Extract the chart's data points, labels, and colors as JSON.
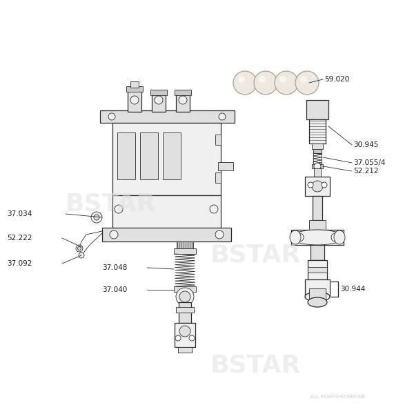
{
  "background_color": "#ffffff",
  "line_color": "#2a2a2a",
  "watermark_text": "BSTAR",
  "watermark_color": "#e0e0e0",
  "copyright_text": "ALL RIGHTS RESERVED",
  "copyright_color": "#cccccc",
  "label_color": "#1a1a1a",
  "label_fs": 7.5,
  "lw_main": 0.9,
  "lw_thin": 0.6,
  "fill_light": "#f0f0f0",
  "fill_mid": "#e0e0e0",
  "fill_dark": "#c8c8c8"
}
